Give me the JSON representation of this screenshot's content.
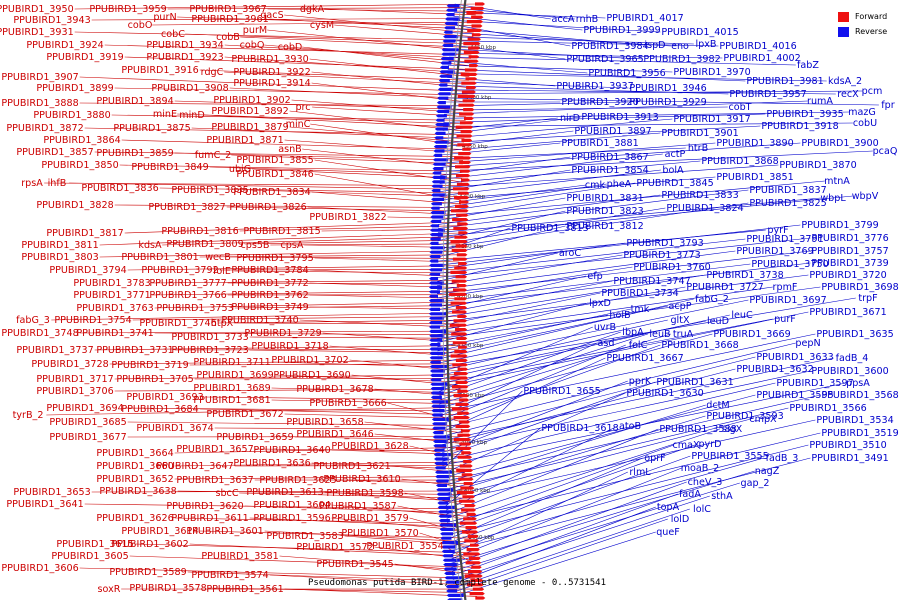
{
  "legend": {
    "forward_label": "Forward",
    "reverse_label": "Reverse",
    "forward_color": "#ee1111",
    "reverse_color": "#1111ee"
  },
  "caption": "Pseudomonas putida BIRD-1, complete genome - 0..5731541",
  "ticks": [
    "4450 kbp",
    "4400 kbp",
    "4350 kbp",
    "4300 kbp",
    "4250 kbp",
    "4200 kbp",
    "4150 kbp",
    "4100 kbp",
    "4050 kbp",
    "4000 kbp",
    "3950 kbp"
  ],
  "forward_labels": [
    [
      "PPUBIRD1_3950",
      35,
      12
    ],
    [
      "PPUBIRD1_3959",
      128,
      12
    ],
    [
      "PPUBIRD1_3967",
      228,
      12
    ],
    [
      "dgkA",
      312,
      12
    ],
    [
      "PPUBIRD1_3943",
      52,
      23
    ],
    [
      "cobO",
      140,
      28
    ],
    [
      "purN",
      165,
      20
    ],
    [
      "PPUBIRD1_3961",
      230,
      22
    ],
    [
      "gacS",
      272,
      18
    ],
    [
      "cysM",
      322,
      28
    ],
    [
      "PPUBIRD1_3931",
      35,
      35
    ],
    [
      "cobC",
      173,
      37
    ],
    [
      "cobB",
      228,
      40
    ],
    [
      "purM",
      255,
      33
    ],
    [
      "PPUBIRD1_3924",
      65,
      48
    ],
    [
      "PPUBIRD1_3934",
      185,
      48
    ],
    [
      "cobQ",
      252,
      48
    ],
    [
      "cobD",
      290,
      50
    ],
    [
      "PPUBIRD1_3919",
      85,
      60
    ],
    [
      "PPUBIRD1_3923",
      185,
      60
    ],
    [
      "PPUBIRD1_3930",
      270,
      62
    ],
    [
      "PPUBIRD1_3916",
      160,
      73
    ],
    [
      "rdgC",
      212,
      75
    ],
    [
      "PPUBIRD1_3922",
      272,
      75
    ],
    [
      "PPUBIRD1_3907",
      40,
      80
    ],
    [
      "PPUBIRD1_3899",
      75,
      91
    ],
    [
      "PPUBIRD1_3908",
      190,
      91
    ],
    [
      "PPUBIRD1_3914",
      272,
      86
    ],
    [
      "PPUBIRD1_3888",
      40,
      106
    ],
    [
      "PPUBIRD1_3894",
      135,
      104
    ],
    [
      "PPUBIRD1_3902",
      252,
      103
    ],
    [
      "prc",
      303,
      110
    ],
    [
      "PPUBIRD1_3880",
      72,
      118
    ],
    [
      "minE",
      165,
      117
    ],
    [
      "minD",
      192,
      118
    ],
    [
      "PPUBIRD1_3892",
      250,
      114
    ],
    [
      "PPUBIRD1_3872",
      45,
      131
    ],
    [
      "PPUBIRD1_3875",
      152,
      131
    ],
    [
      "PPUBIRD1_3879",
      250,
      130
    ],
    [
      "minC",
      298,
      127
    ],
    [
      "PPUBIRD1_3864",
      82,
      143
    ],
    [
      "PPUBIRD1_3871",
      245,
      143
    ],
    [
      "PPUBIRD1_3857",
      55,
      155
    ],
    [
      "PPUBIRD1_3859",
      135,
      156
    ],
    [
      "fumC_2",
      213,
      158
    ],
    [
      "asnB",
      290,
      152
    ],
    [
      "PPUBIRD1_3850",
      80,
      168
    ],
    [
      "PPUBIRD1_3849",
      170,
      170
    ],
    [
      "ubiG",
      240,
      172
    ],
    [
      "PPUBIRD1_3855",
      275,
      163
    ],
    [
      "rpsA",
      32,
      186
    ],
    [
      "ihfB",
      57,
      186
    ],
    [
      "PPUBIRD1_3836",
      120,
      191
    ],
    [
      "PPUBIRD1_3835",
      210,
      193
    ],
    [
      "PPUBIRD1_3846",
      275,
      177
    ],
    [
      "PPUBIRD1_3834",
      272,
      195
    ],
    [
      "PPUBIRD1_3828",
      75,
      208
    ],
    [
      "PPUBIRD1_3827",
      187,
      210
    ],
    [
      "PPUBIRD1_3826",
      268,
      210
    ],
    [
      "PPUBIRD1_3822",
      348,
      220
    ],
    [
      "PPUBIRD1_3817",
      85,
      236
    ],
    [
      "PPUBIRD1_3816",
      200,
      234
    ],
    [
      "PPUBIRD1_3815",
      282,
      234
    ],
    [
      "PPUBIRD1_3811",
      60,
      248
    ],
    [
      "kdsA",
      150,
      248
    ],
    [
      "PPUBIRD1_3809",
      205,
      247
    ],
    [
      "cps5B",
      255,
      248
    ],
    [
      "cpsA",
      292,
      248
    ],
    [
      "PPUBIRD1_3803",
      60,
      260
    ],
    [
      "PPUBIRD1_3801",
      160,
      260
    ],
    [
      "wecB",
      218,
      260
    ],
    [
      "PPUBIRD1_3795",
      275,
      261
    ],
    [
      "PPUBIRD1_3794",
      88,
      273
    ],
    [
      "PPUBIRD1_3792",
      180,
      273
    ],
    [
      "folE",
      222,
      274
    ],
    [
      "PPUBIRD1_3784",
      270,
      273
    ],
    [
      "PPUBIRD1_3783",
      112,
      286
    ],
    [
      "PPUBIRD1_3777",
      188,
      286
    ],
    [
      "PPUBIRD1_3772",
      270,
      286
    ],
    [
      "PPUBIRD1_3771",
      112,
      298
    ],
    [
      "PPUBIRD1_3766",
      188,
      298
    ],
    [
      "PPUBIRD1_3762",
      270,
      298
    ],
    [
      "PPUBIRD1_3763",
      115,
      311
    ],
    [
      "PPUBIRD1_3753",
      195,
      311
    ],
    [
      "PPUBIRD1_3749",
      270,
      310
    ],
    [
      "fabG_3",
      33,
      323
    ],
    [
      "PPUBIRD1_3754",
      93,
      323
    ],
    [
      "PPUBIRD1_3746",
      178,
      326
    ],
    [
      "htpX",
      222,
      326
    ],
    [
      "PPUBIRD1_3740",
      260,
      323
    ],
    [
      "PPUBIRD1_3748",
      40,
      336
    ],
    [
      "PPUBIRD1_3741",
      115,
      336
    ],
    [
      "PPUBIRD1_3733",
      210,
      340
    ],
    [
      "PPUBIRD1_3729",
      283,
      336
    ],
    [
      "PPUBIRD1_3737",
      55,
      353
    ],
    [
      "PPUBIRD1_3731",
      135,
      353
    ],
    [
      "PPUBIRD1_3723",
      210,
      353
    ],
    [
      "PPUBIRD1_3718",
      290,
      349
    ],
    [
      "PPUBIRD1_3728",
      70,
      367
    ],
    [
      "PPUBIRD1_3719",
      150,
      368
    ],
    [
      "PPUBIRD1_3711",
      232,
      365
    ],
    [
      "PPUBIRD1_3702",
      310,
      363
    ],
    [
      "PPUBIRD1_3717",
      75,
      382
    ],
    [
      "PPUBIRD1_3705",
      155,
      382
    ],
    [
      "PPUBIRD1_3699",
      235,
      378
    ],
    [
      "PPUBIRD1_3690",
      312,
      378
    ],
    [
      "PPUBIRD1_3706",
      75,
      394
    ],
    [
      "PPUBIRD1_3689",
      232,
      391
    ],
    [
      "PPUBIRD1_3678",
      335,
      392
    ],
    [
      "PPUBIRD1_3693",
      165,
      400
    ],
    [
      "PPUBIRD1_3681",
      232,
      403
    ],
    [
      "tyrB_2",
      28,
      418
    ],
    [
      "PPUBIRD1_3694",
      85,
      411
    ],
    [
      "PPUBIRD1_3684",
      160,
      412
    ],
    [
      "PPUBIRD1_3672",
      245,
      417
    ],
    [
      "PPUBIRD1_3666",
      348,
      406
    ],
    [
      "PPUBIRD1_3685",
      88,
      425
    ],
    [
      "PPUBIRD1_3674",
      175,
      431
    ],
    [
      "PPUBIRD1_3658",
      325,
      425
    ],
    [
      "PPUBIRD1_3677",
      88,
      440
    ],
    [
      "PPUBIRD1_3659",
      255,
      440
    ],
    [
      "PPUBIRD1_3646",
      335,
      437
    ],
    [
      "PPUBIRD1_3664",
      135,
      456
    ],
    [
      "PPUBIRD1_3657",
      215,
      452
    ],
    [
      "PPUBIRD1_3640",
      292,
      453
    ],
    [
      "PPUBIRD1_3628",
      370,
      449
    ],
    [
      "PPUBIRD1_3660",
      135,
      469
    ],
    [
      "PPUBIRD1_3647",
      195,
      469
    ],
    [
      "PPUBIRD1_3636",
      272,
      466
    ],
    [
      "PPUBIRD1_3621",
      352,
      469
    ],
    [
      "PPUBIRD1_3652",
      135,
      482
    ],
    [
      "PPUBIRD1_3637",
      215,
      483
    ],
    [
      "PPUBIRD1_3625",
      298,
      483
    ],
    [
      "PPUBIRD1_3610",
      362,
      482
    ],
    [
      "PPUBIRD1_3653",
      52,
      495
    ],
    [
      "PPUBIRD1_3638",
      138,
      494
    ],
    [
      "sbcC",
      227,
      496
    ],
    [
      "PPUBIRD1_3613",
      285,
      495
    ],
    [
      "PPUBIRD1_3598",
      365,
      496
    ],
    [
      "PPUBIRD1_3641",
      45,
      507
    ],
    [
      "PPUBIRD1_3620",
      205,
      509
    ],
    [
      "PPUBIRD1_3604",
      292,
      508
    ],
    [
      "PPUBIRD1_3587",
      358,
      509
    ],
    [
      "PPUBIRD1_3626",
      135,
      521
    ],
    [
      "PPUBIRD1_3611",
      210,
      521
    ],
    [
      "PPUBIRD1_3596",
      292,
      521
    ],
    [
      "PPUBIRD1_3579",
      370,
      521
    ],
    [
      "PPUBIRD1_3614",
      160,
      534
    ],
    [
      "PPUBIRD1_3601",
      225,
      534
    ],
    [
      "PPUBIRD1_3583",
      305,
      539
    ],
    [
      "PPUBIRD1_3570",
      380,
      536
    ],
    [
      "PPUBIRD1_3615",
      95,
      547
    ],
    [
      "PPUBIRD1_3602",
      150,
      547
    ],
    [
      "PPUBIRD1_3572",
      335,
      550
    ],
    [
      "PPUBIRD1_3554",
      405,
      549
    ],
    [
      "PPUBIRD1_3605",
      90,
      559
    ],
    [
      "PPUBIRD1_3581",
      240,
      559
    ],
    [
      "PPUBIRD1_3545",
      355,
      567
    ],
    [
      "PPUBIRD1_3606",
      40,
      571
    ],
    [
      "PPUBIRD1_3589",
      148,
      575
    ],
    [
      "PPUBIRD1_3574",
      230,
      578
    ],
    [
      "soxR",
      109,
      592
    ],
    [
      "PPUBIRD1_3578",
      168,
      591
    ],
    [
      "PPUBIRD1_3561",
      245,
      592
    ]
  ],
  "reverse_labels": [
    [
      "accA",
      563,
      22
    ],
    [
      "rnhB",
      587,
      22
    ],
    [
      "PPUBIRD1_4017",
      645,
      21
    ],
    [
      "PPUBIRD1_3999",
      622,
      33
    ],
    [
      "PPUBIRD1_4015",
      700,
      35
    ],
    [
      "PPUBIRD1_3984",
      610,
      49
    ],
    [
      "ispD",
      655,
      48
    ],
    [
      "eno",
      680,
      49
    ],
    [
      "lpxB",
      706,
      47
    ],
    [
      "PPUBIRD1_4016",
      758,
      49
    ],
    [
      "PPUBIRD1_3965",
      605,
      62
    ],
    [
      "PPUBIRD1_3982",
      682,
      62
    ],
    [
      "PPUBIRD1_4002",
      762,
      61
    ],
    [
      "fabZ",
      808,
      68
    ],
    [
      "PPUBIRD1_3956",
      627,
      76
    ],
    [
      "PPUBIRD1_3970",
      712,
      75
    ],
    [
      "PPUBIRD1_3981",
      785,
      84
    ],
    [
      "kdsA_2",
      845,
      84
    ],
    [
      "PPUBIRD1_3937",
      595,
      89
    ],
    [
      "PPUBIRD1_3946",
      668,
      91
    ],
    [
      "PPUBIRD1_3957",
      768,
      97
    ],
    [
      "recX",
      848,
      97
    ],
    [
      "pcm",
      872,
      94
    ],
    [
      "fpr",
      888,
      108
    ],
    [
      "PPUBIRD1_3920",
      600,
      105
    ],
    [
      "PPUBIRD1_3929",
      668,
      105
    ],
    [
      "cobT",
      740,
      110
    ],
    [
      "rumA",
      820,
      104
    ],
    [
      "mazG",
      862,
      115
    ],
    [
      "PPUBIRD1_3935",
      805,
      117
    ],
    [
      "cobU",
      865,
      126
    ],
    [
      "nirD",
      570,
      121
    ],
    [
      "PPUBIRD1_3913",
      620,
      120
    ],
    [
      "PPUBIRD1_3917",
      712,
      122
    ],
    [
      "PPUBIRD1_3918",
      800,
      129
    ],
    [
      "PPUBIRD1_3897",
      613,
      134
    ],
    [
      "PPUBIRD1_3901",
      700,
      136
    ],
    [
      "PPUBIRD1_3881",
      600,
      146
    ],
    [
      "htrB",
      698,
      151
    ],
    [
      "PPUBIRD1_3890",
      755,
      146
    ],
    [
      "PPUBIRD1_3900",
      840,
      146
    ],
    [
      "pcaQ",
      885,
      154
    ],
    [
      "PPUBIRD1_3867",
      610,
      160
    ],
    [
      "actP",
      675,
      157
    ],
    [
      "PPUBIRD1_3868",
      740,
      164
    ],
    [
      "PPUBIRD1_3870",
      818,
      168
    ],
    [
      "PPUBIRD1_3854",
      610,
      173
    ],
    [
      "bolA",
      673,
      173
    ],
    [
      "PPUBIRD1_3851",
      755,
      180
    ],
    [
      "cmk",
      595,
      188
    ],
    [
      "pheA",
      619,
      187
    ],
    [
      "PPUBIRD1_3845",
      675,
      186
    ],
    [
      "mtnA",
      837,
      184
    ],
    [
      "PPUBIRD1_3831",
      605,
      201
    ],
    [
      "PPUBIRD1_3833",
      700,
      198
    ],
    [
      "PPUBIRD1_3837",
      788,
      193
    ],
    [
      "wbpL",
      833,
      201
    ],
    [
      "wbpV",
      865,
      199
    ],
    [
      "PPUBIRD1_3823",
      605,
      214
    ],
    [
      "PPUBIRD1_3824",
      705,
      211
    ],
    [
      "PPUBIRD1_3825",
      788,
      206
    ],
    [
      "PPUBIRD1_3813",
      550,
      231
    ],
    [
      "PPUBIRD1_3812",
      605,
      229
    ],
    [
      "pyrF",
      778,
      233
    ],
    [
      "PPUBIRD1_3799",
      840,
      228
    ],
    [
      "PPUBIRD1_3793",
      665,
      246
    ],
    [
      "PPUBIRD1_3791",
      785,
      242
    ],
    [
      "PPUBIRD1_3776",
      850,
      241
    ],
    [
      "aroC",
      570,
      256
    ],
    [
      "PPUBIRD1_3773",
      662,
      258
    ],
    [
      "PPUBIRD1_3769",
      775,
      254
    ],
    [
      "PPUBIRD1_3757",
      850,
      254
    ],
    [
      "PPUBIRD1_3760",
      672,
      270
    ],
    [
      "PPUBIRD1_3750",
      790,
      267
    ],
    [
      "PPUBIRD1_3739",
      850,
      266
    ],
    [
      "efp",
      595,
      279
    ],
    [
      "PPUBIRD1_3747",
      652,
      284
    ],
    [
      "PPUBIRD1_3738",
      745,
      278
    ],
    [
      "PPUBIRD1_3720",
      848,
      278
    ],
    [
      "PPUBIRD1_3734",
      640,
      296
    ],
    [
      "PPUBIRD1_3727",
      725,
      290
    ],
    [
      "rpmF",
      785,
      290
    ],
    [
      "PPUBIRD1_3698",
      860,
      290
    ],
    [
      "lpxD",
      600,
      306
    ],
    [
      "holB",
      620,
      318
    ],
    [
      "tmk",
      640,
      312
    ],
    [
      "acpP",
      680,
      309
    ],
    [
      "fabG_2",
      712,
      302
    ],
    [
      "PPUBIRD1_3697",
      788,
      303
    ],
    [
      "trpF",
      868,
      301
    ],
    [
      "gltX",
      680,
      323
    ],
    [
      "leuD",
      718,
      324
    ],
    [
      "leuC",
      742,
      318
    ],
    [
      "purF",
      785,
      322
    ],
    [
      "PPUBIRD1_3671",
      848,
      315
    ],
    [
      "uvrB",
      605,
      330
    ],
    [
      "lbpA",
      633,
      335
    ],
    [
      "leuB",
      660,
      337
    ],
    [
      "truA",
      683,
      337
    ],
    [
      "PPUBIRD1_3669",
      752,
      337
    ],
    [
      "PPUBIRD1_3635",
      855,
      337
    ],
    [
      "asd",
      606,
      346
    ],
    [
      "folC",
      638,
      348
    ],
    [
      "PPUBIRD1_3668",
      700,
      348
    ],
    [
      "pepN",
      808,
      346
    ],
    [
      "PPUBIRD1_3667",
      645,
      361
    ],
    [
      "PPUBIRD1_3633",
      795,
      360
    ],
    [
      "fadB_4",
      852,
      361
    ],
    [
      "PPUBIRD1_3632",
      775,
      372
    ],
    [
      "PPUBIRD1_3600",
      850,
      374
    ],
    [
      "pprK",
      640,
      384
    ],
    [
      "PPUBIRD1_3631",
      695,
      385
    ],
    [
      "PPUBIRD1_3597",
      815,
      386
    ],
    [
      "ppsA",
      858,
      386
    ],
    [
      "PPUBIRD1_3655",
      562,
      394
    ],
    [
      "PPUBIRD1_3630",
      665,
      396
    ],
    [
      "PPUBIRD1_3595",
      795,
      398
    ],
    [
      "PPUBIRD1_3568",
      860,
      398
    ],
    [
      "dctM",
      718,
      408
    ],
    [
      "PPUBIRD1_3566",
      828,
      411
    ],
    [
      "PPUBIRD1_3593",
      745,
      419
    ],
    [
      "cmpX",
      763,
      422
    ],
    [
      "PPUBIRD1_3534",
      855,
      423
    ],
    [
      "PPUBIRD1_3618",
      580,
      431
    ],
    [
      "atoB",
      630,
      429
    ],
    [
      "PPUBIRD1_3588",
      698,
      432
    ],
    [
      "sigX",
      732,
      432
    ],
    [
      "PPUBIRD1_3519",
      860,
      436
    ],
    [
      "cmaX",
      686,
      448
    ],
    [
      "pyrD",
      710,
      447
    ],
    [
      "PPUBIRD1_3510",
      848,
      448
    ],
    [
      "oprF",
      655,
      461
    ],
    [
      "PPUBIRD1_3555",
      730,
      459
    ],
    [
      "fadB_3",
      782,
      461
    ],
    [
      "PPUBIRD1_3491",
      850,
      461
    ],
    [
      "rlmL",
      640,
      475
    ],
    [
      "moaB_2",
      700,
      471
    ],
    [
      "nagZ",
      767,
      474
    ],
    [
      "cheV_3",
      705,
      485
    ],
    [
      "gap_2",
      755,
      486
    ],
    [
      "fadA",
      690,
      497
    ],
    [
      "sthA",
      722,
      499
    ],
    [
      "topA",
      668,
      510
    ],
    [
      "lolC",
      702,
      512
    ],
    [
      "lolD",
      680,
      522
    ],
    [
      "queF",
      668,
      535
    ]
  ]
}
